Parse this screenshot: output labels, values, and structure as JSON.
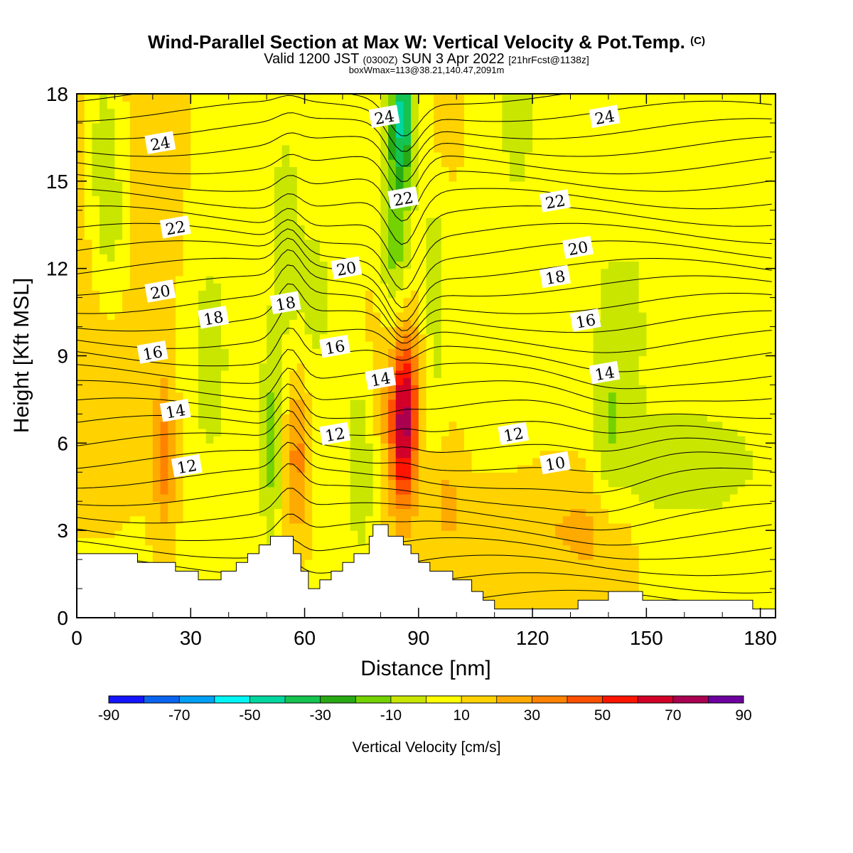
{
  "header": {
    "title": "Wind-Parallel Section at Max W: Vertical Velocity & Pot.Temp.",
    "copyright": "(C)",
    "valid_prefix": "Valid 1200 JST",
    "valid_utc": "(0300Z)",
    "valid_date": "SUN 3 Apr 2022",
    "forecast": "[21hrFcst@1138z]",
    "box_info": "boxWmax=113@38.21,140.47,2091m"
  },
  "chart_data": {
    "type": "heatmap",
    "xlabel": "Distance [nm]",
    "ylabel": "Height [Kft MSL]",
    "xlim": [
      0,
      184
    ],
    "ylim": [
      0,
      18
    ],
    "x_ticks": [
      0,
      30,
      60,
      90,
      120,
      150,
      180
    ],
    "y_ticks": [
      0,
      3,
      6,
      9,
      12,
      15,
      18
    ],
    "colorbar": {
      "title": "Vertical Velocity [cm/s]",
      "labels": [
        "-90",
        "-70",
        "-50",
        "-30",
        "-10",
        "10",
        "30",
        "50",
        "70",
        "90"
      ],
      "bins": [
        -90,
        -80,
        -70,
        -60,
        -50,
        -40,
        -30,
        -20,
        -10,
        0,
        10,
        20,
        30,
        40,
        50,
        60,
        70,
        80,
        90
      ],
      "colors": [
        "#1414ff",
        "#0a64f0",
        "#00a0f5",
        "#00f5f5",
        "#00d7a0",
        "#14c350",
        "#28aa14",
        "#73d200",
        "#c8e600",
        "#ffff00",
        "#ffd200",
        "#ffaa00",
        "#ff8200",
        "#ff5000",
        "#ff1400",
        "#d20028",
        "#aa0050",
        "#6e00a0"
      ]
    },
    "potential_temperature_labels": [
      {
        "text": "24",
        "x": 22,
        "y": 16.3
      },
      {
        "text": "24",
        "x": 81,
        "y": 17.2
      },
      {
        "text": "24",
        "x": 139,
        "y": 17.2
      },
      {
        "text": "22",
        "x": 26,
        "y": 13.4
      },
      {
        "text": "22",
        "x": 86,
        "y": 14.4
      },
      {
        "text": "22",
        "x": 126,
        "y": 14.3
      },
      {
        "text": "20",
        "x": 22,
        "y": 11.2
      },
      {
        "text": "20",
        "x": 71,
        "y": 12.0
      },
      {
        "text": "20",
        "x": 132,
        "y": 12.7
      },
      {
        "text": "18",
        "x": 36,
        "y": 10.3
      },
      {
        "text": "18",
        "x": 55,
        "y": 10.8
      },
      {
        "text": "18",
        "x": 126,
        "y": 11.7
      },
      {
        "text": "16",
        "x": 20,
        "y": 9.1
      },
      {
        "text": "16",
        "x": 68,
        "y": 9.3
      },
      {
        "text": "16",
        "x": 134,
        "y": 10.2
      },
      {
        "text": "14",
        "x": 26,
        "y": 7.1
      },
      {
        "text": "14",
        "x": 80,
        "y": 8.2
      },
      {
        "text": "14",
        "x": 139,
        "y": 8.4
      },
      {
        "text": "12",
        "x": 29,
        "y": 5.2
      },
      {
        "text": "12",
        "x": 68,
        "y": 6.3
      },
      {
        "text": "12",
        "x": 115,
        "y": 6.3
      },
      {
        "text": "10",
        "x": 126,
        "y": 5.3
      }
    ],
    "terrain_profile": [
      [
        0,
        2.2
      ],
      [
        6,
        2.2
      ],
      [
        16,
        2.2
      ],
      [
        16,
        1.9
      ],
      [
        22,
        1.9
      ],
      [
        26,
        1.9
      ],
      [
        26,
        1.6
      ],
      [
        32,
        1.6
      ],
      [
        32,
        1.3
      ],
      [
        38,
        1.3
      ],
      [
        38,
        1.6
      ],
      [
        42,
        1.6
      ],
      [
        42,
        1.9
      ],
      [
        45,
        1.9
      ],
      [
        45,
        2.2
      ],
      [
        48,
        2.2
      ],
      [
        48,
        2.5
      ],
      [
        51,
        2.5
      ],
      [
        51,
        2.8
      ],
      [
        57,
        2.8
      ],
      [
        57,
        2.2
      ],
      [
        59,
        2.2
      ],
      [
        59,
        1.6
      ],
      [
        61,
        1.6
      ],
      [
        61,
        1.0
      ],
      [
        64,
        1.0
      ],
      [
        64,
        1.3
      ],
      [
        67,
        1.3
      ],
      [
        67,
        1.6
      ],
      [
        70,
        1.6
      ],
      [
        70,
        1.9
      ],
      [
        73,
        1.9
      ],
      [
        73,
        2.2
      ],
      [
        77,
        2.2
      ],
      [
        77,
        2.8
      ],
      [
        78,
        2.8
      ],
      [
        78,
        3.2
      ],
      [
        82,
        3.2
      ],
      [
        82,
        2.8
      ],
      [
        86,
        2.8
      ],
      [
        86,
        2.5
      ],
      [
        88,
        2.5
      ],
      [
        88,
        2.2
      ],
      [
        90,
        2.2
      ],
      [
        90,
        1.9
      ],
      [
        93,
        1.9
      ],
      [
        93,
        1.6
      ],
      [
        99,
        1.6
      ],
      [
        99,
        1.3
      ],
      [
        104,
        1.3
      ],
      [
        104,
        0.9
      ],
      [
        107,
        0.9
      ],
      [
        107,
        0.6
      ],
      [
        110,
        0.6
      ],
      [
        110,
        0.3
      ],
      [
        132,
        0.3
      ],
      [
        132,
        0.6
      ],
      [
        140,
        0.6
      ],
      [
        140,
        0.9
      ],
      [
        149,
        0.9
      ],
      [
        149,
        0.6
      ],
      [
        178,
        0.6
      ],
      [
        178,
        0.3
      ],
      [
        184,
        0.3
      ]
    ]
  }
}
